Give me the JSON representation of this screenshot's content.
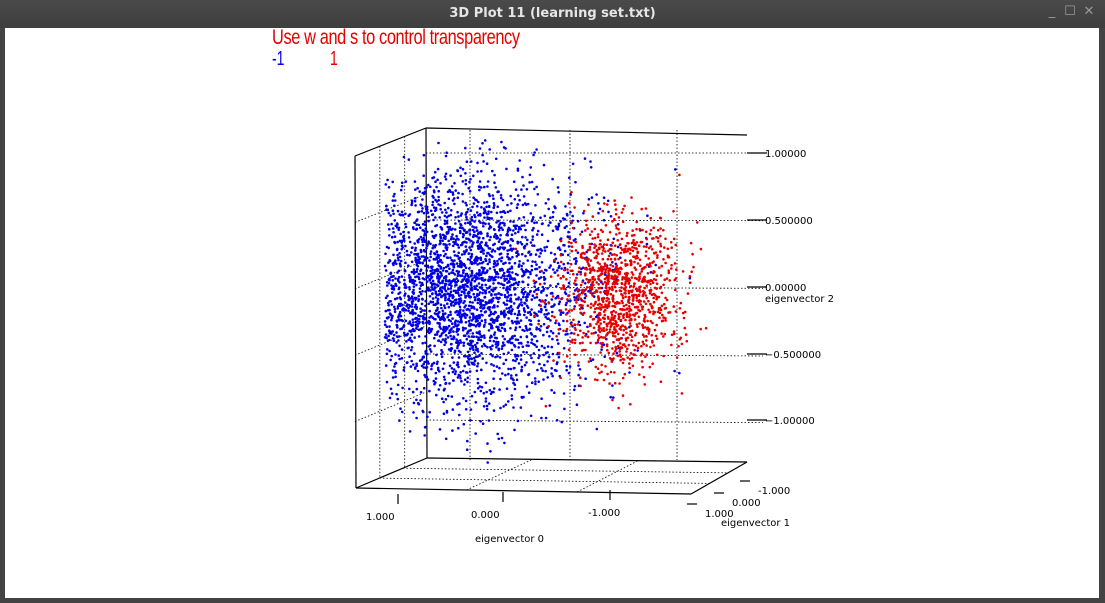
{
  "window": {
    "title": "3D Plot 11 (learning set.txt)"
  },
  "hint_text": "Use w and s to control transparency",
  "legend": [
    {
      "label": "-1",
      "color": "#0000e6"
    },
    {
      "label": "1",
      "color": "#e60000"
    }
  ],
  "chart_data": {
    "type": "scatter",
    "projection": "3d",
    "axes": {
      "x": {
        "label": "eigenvector 0",
        "ticks": [
          "1.000",
          "0.000",
          "-1.000"
        ]
      },
      "y": {
        "label": "eigenvector 1",
        "ticks": [
          "-1.000",
          "0.000",
          "1.000"
        ]
      },
      "z": {
        "label": "eigenvector 2",
        "ticks": [
          "1.00000",
          "0.500000",
          "0.00000",
          "−0.500000",
          "−1.00000"
        ]
      }
    },
    "series": [
      {
        "name": "-1",
        "color": "#0000e6",
        "center": {
          "x": 0.3,
          "z": 0.0
        },
        "spread": {
          "x": 0.45,
          "z": 0.42
        }
      },
      {
        "name": "1",
        "color": "#e60000",
        "center": {
          "x": -0.85,
          "z": -0.05
        },
        "spread": {
          "x": 0.22,
          "z": 0.28
        }
      }
    ]
  }
}
